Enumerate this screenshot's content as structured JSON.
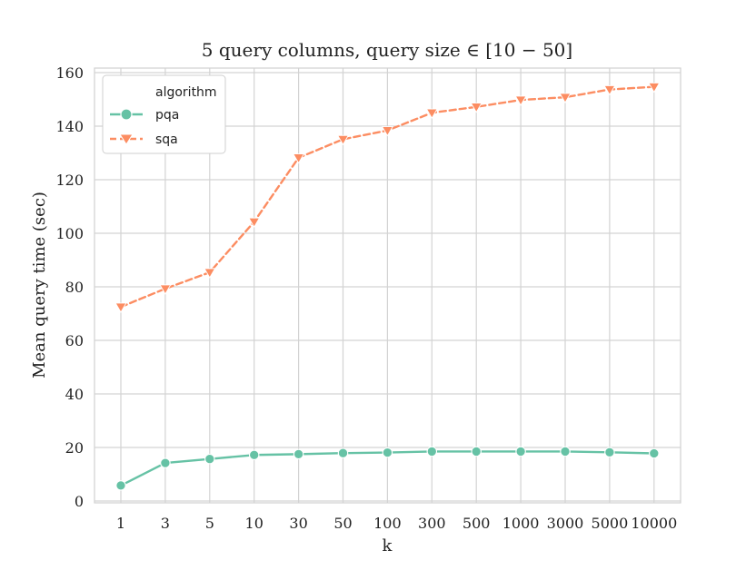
{
  "chart_data": {
    "type": "line",
    "title": "5 query columns, query size ∈ [10 − 50]",
    "xlabel": "k",
    "ylabel": "Mean query time (sec)",
    "categories": [
      "1",
      "3",
      "5",
      "10",
      "30",
      "50",
      "100",
      "300",
      "500",
      "1000",
      "3000",
      "5000",
      "10000"
    ],
    "ylim": [
      0,
      160
    ],
    "yticks": [
      0,
      20,
      40,
      60,
      80,
      100,
      120,
      140,
      160
    ],
    "grid": true,
    "legend": {
      "title": "algorithm",
      "placement": "top-left"
    },
    "series": [
      {
        "name": "pqa",
        "color": "#66c2a5",
        "marker": "circle",
        "linestyle": "solid",
        "values": [
          5.8,
          14.2,
          15.7,
          17.2,
          17.5,
          17.9,
          18.1,
          18.5,
          18.5,
          18.5,
          18.5,
          18.2,
          17.8
        ]
      },
      {
        "name": "sqa",
        "color": "#fc8d62",
        "marker": "triangle-down",
        "linestyle": "dashed",
        "values": [
          72.5,
          79.3,
          85.4,
          104.3,
          128.2,
          135.1,
          138.4,
          145.0,
          147.2,
          149.8,
          150.8,
          153.7,
          154.7
        ]
      }
    ]
  }
}
